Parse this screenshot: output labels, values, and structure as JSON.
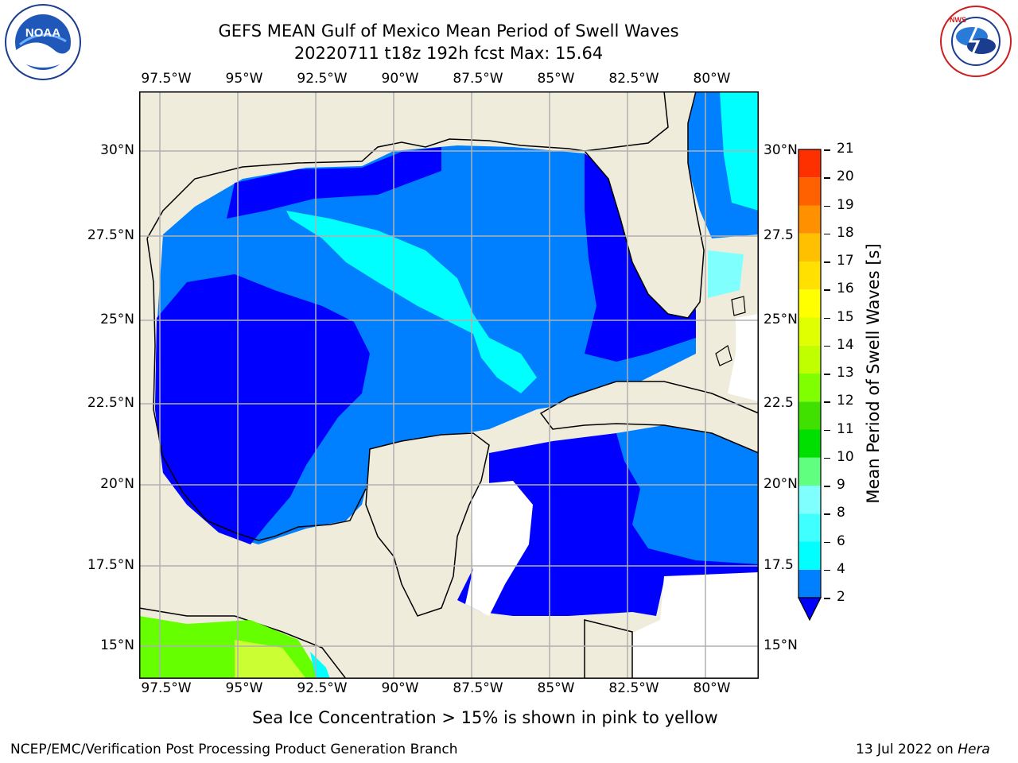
{
  "header": {
    "title_line1": "GEFS MEAN Gulf of Mexico Mean Period of Swell Waves",
    "title_line2": "20220711 t18z 192h fcst   Max: 15.64"
  },
  "logos": {
    "left": {
      "name": "noaa-logo",
      "text": "NOAA",
      "ring_text": "NATIONAL OCEANIC AND ATMOSPHERIC ADMINISTRATION · U.S. DEPARTMENT OF COMMERCE"
    },
    "right": {
      "name": "nws-logo",
      "ring_text": "NATIONAL WEATHER SERVICE"
    }
  },
  "map": {
    "lon_labels": [
      "97.5°W",
      "95°W",
      "92.5°W",
      "90°W",
      "87.5°W",
      "85°W",
      "82.5°W",
      "80°W"
    ],
    "lat_labels_left": [
      "30°N",
      "27.5°N",
      "25°N",
      "22.5°N",
      "20°N",
      "17.5°N",
      "15°N"
    ],
    "lat_labels_right": [
      "30°N",
      "27.5",
      "25°N",
      "22.5",
      "20°N",
      "17.5",
      "15°N"
    ],
    "colors": {
      "land": "#efecdc",
      "grid": "#b0b0b0",
      "c2_4": "#0000ff",
      "c4_6": "#0080ff",
      "c6_8": "#00ffff",
      "c8_9": "#80ffff",
      "green": "#66ff00",
      "yellow_green": "#ccff33"
    }
  },
  "colorbar": {
    "label": "Mean Period of Swell Waves [s]",
    "ticks": [
      "2",
      "4",
      "6",
      "8",
      "9",
      "10",
      "11",
      "12",
      "13",
      "14",
      "15",
      "16",
      "17",
      "18",
      "19",
      "20",
      "21"
    ],
    "colors": [
      "#0080ff",
      "#00ffff",
      "#40ffff",
      "#80ffff",
      "#60ff80",
      "#00e000",
      "#40e000",
      "#80ff00",
      "#c0ff00",
      "#e0ff00",
      "#ffff00",
      "#ffe000",
      "#ffc000",
      "#ff9000",
      "#ff6000",
      "#ff3000",
      "#ff0000"
    ],
    "extend_color": "#0000ff"
  },
  "note": "Sea Ice Concentration > 15% is shown in pink to yellow",
  "footer": {
    "left": "NCEP/EMC/Verification Post Processing Product Generation Branch",
    "right_date": "13 Jul 2022 on ",
    "right_machine": "Hera"
  }
}
